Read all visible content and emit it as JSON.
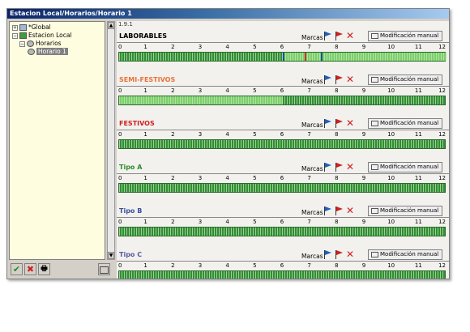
{
  "window": {
    "title": "Estacion Local/Horarios/Horario 1"
  },
  "tree": {
    "items": [
      {
        "label": "*Global",
        "level": 0
      },
      {
        "label": "Estacion Local",
        "level": 0
      },
      {
        "label": "Horarios",
        "level": 1
      },
      {
        "label": "Horario 1",
        "level": 2,
        "selected": true
      }
    ]
  },
  "bottom": {
    "ok": "✔",
    "cancel": "✖",
    "print": "🖶",
    "edit": "edit"
  },
  "main": {
    "crumb": "1.9.1",
    "marcas_label": "Marcas",
    "manual_label": "Modificación manual",
    "hours": [
      "0",
      "1",
      "2",
      "3",
      "4",
      "5",
      "6",
      "7",
      "8",
      "9",
      "10",
      "11",
      "12"
    ],
    "schedules": [
      {
        "title": "LABORABLES",
        "color": "#000000",
        "marks": [
          {
            "hour": 6.0,
            "color": "#1f4fa0"
          },
          {
            "hour": 6.8,
            "color": "#cc3333"
          },
          {
            "hour": 7.4,
            "color": "#1f4fa0"
          }
        ],
        "light_from": 6.0
      },
      {
        "title": "SEMI-FESTIVOS",
        "color": "#e8733a",
        "marks": [],
        "light_from": 0.0,
        "light_to": 6.0
      },
      {
        "title": "FESTIVOS",
        "color": "#cc2222",
        "marks": []
      },
      {
        "title": "Tipo A",
        "color": "#2e8b2e",
        "marks": []
      },
      {
        "title": "Tipo B",
        "color": "#3a4fa0",
        "marks": []
      },
      {
        "title": "Tipo C",
        "color": "#5a5aa0",
        "marks": []
      }
    ]
  },
  "colors": {
    "bar_dark": "#2f8f2f",
    "bar_light": "#7ccf6a",
    "flag_blue": "#1f5fbf",
    "flag_red": "#cc2222"
  }
}
